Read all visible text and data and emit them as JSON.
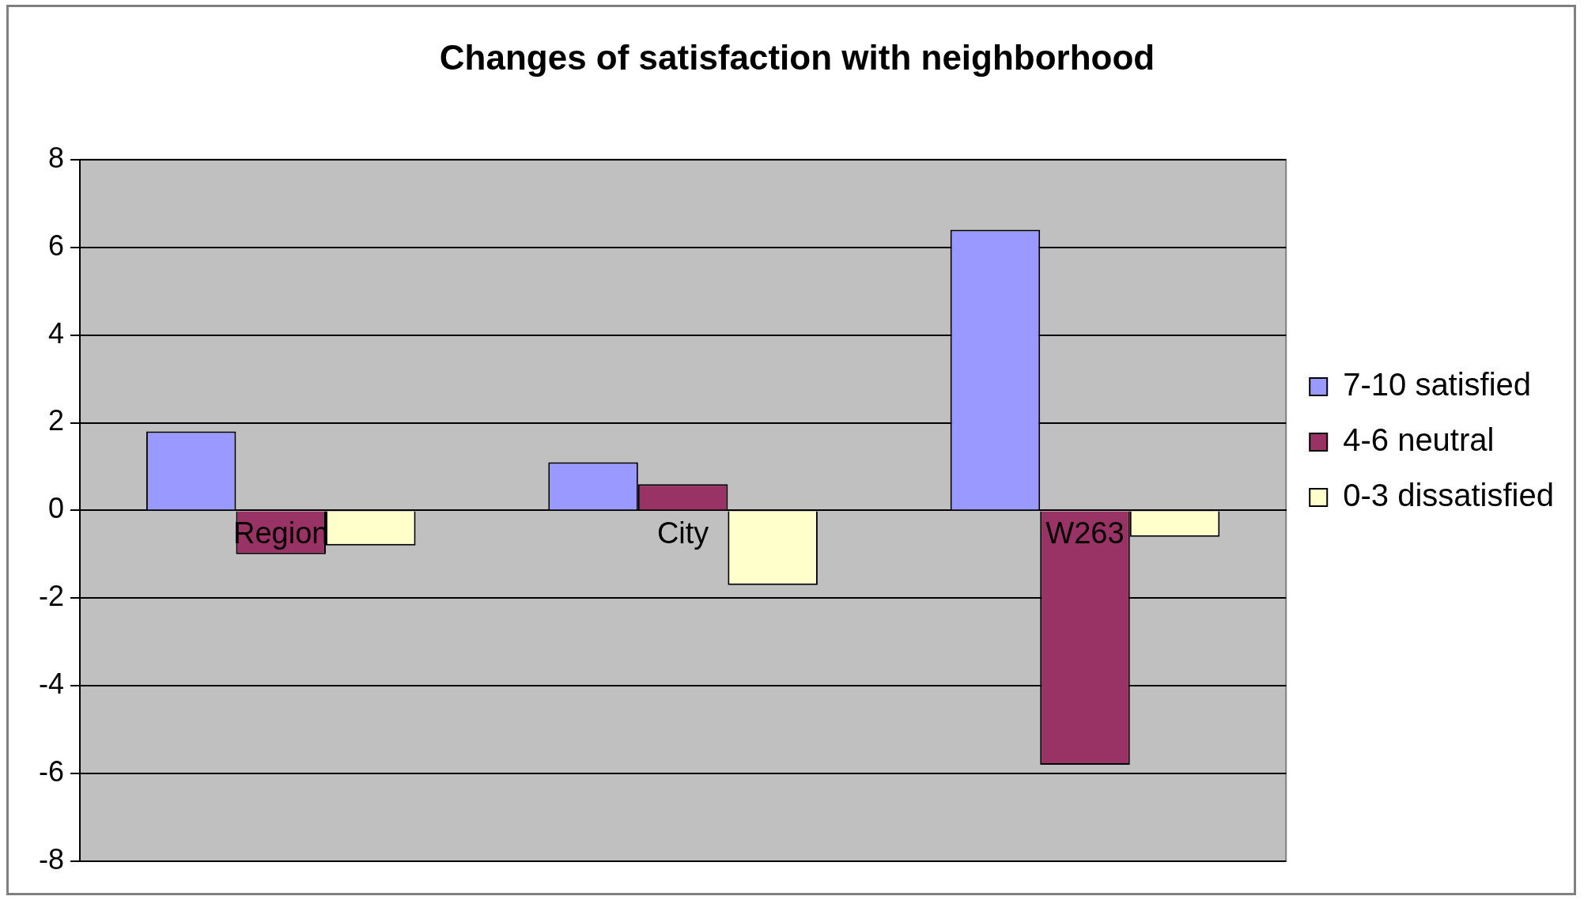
{
  "chart_data": {
    "type": "bar",
    "title": "Changes of satisfaction with neighborhood",
    "categories": [
      "Region",
      "City",
      "W263"
    ],
    "series": [
      {
        "name": "7-10 satisfied",
        "color": "#9999ff",
        "values": [
          1.8,
          1.1,
          6.4
        ]
      },
      {
        "name": "4-6 neutral",
        "color": "#993366",
        "values": [
          -1.0,
          0.6,
          -5.8
        ]
      },
      {
        "name": "0-3 dissatisfied",
        "color": "#ffffcc",
        "values": [
          -0.8,
          -1.7,
          -0.6
        ]
      }
    ],
    "ylim": [
      -8,
      8
    ],
    "yticks": [
      -8,
      -6,
      -4,
      -2,
      0,
      2,
      4,
      6,
      8
    ],
    "grid": "y",
    "legend": "right"
  }
}
